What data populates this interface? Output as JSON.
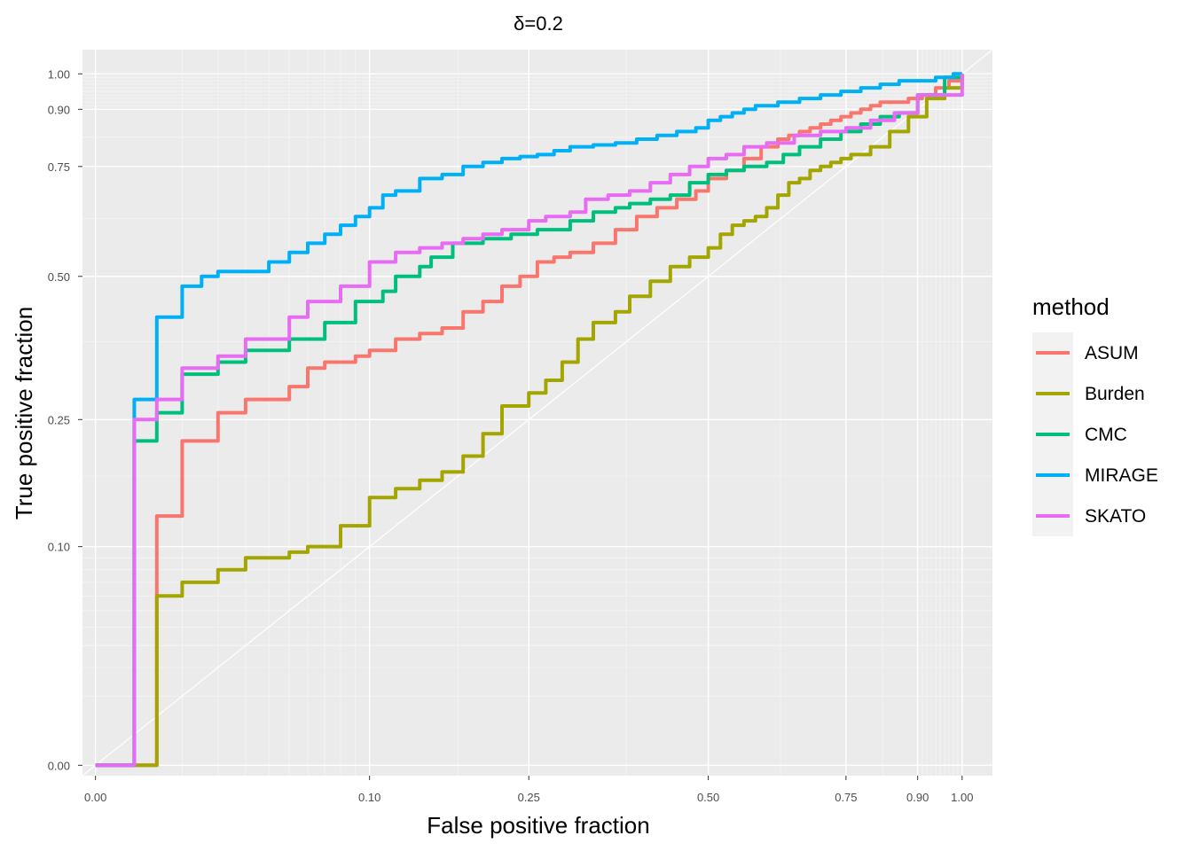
{
  "chart_data": {
    "type": "line",
    "title": "δ=0.2",
    "xlabel": "False positive fraction",
    "ylabel": "True positive fraction",
    "x_ticks": [
      0.0,
      0.1,
      0.25,
      0.5,
      0.75,
      0.9,
      1.0
    ],
    "x_tick_labels": [
      "0.00",
      "0.10",
      "0.25",
      "0.50",
      "0.75",
      "0.90",
      "1.00"
    ],
    "y_ticks": [
      0.0,
      0.1,
      0.25,
      0.5,
      0.75,
      0.9,
      1.0
    ],
    "y_tick_labels": [
      "0.00",
      "0.10",
      "0.25",
      "0.50",
      "0.75",
      "0.90",
      "1.00"
    ],
    "xlim": [
      -0.05,
      1.05
    ],
    "ylim": [
      -0.05,
      1.05
    ],
    "grid": true,
    "reference_line": "diagonal",
    "legend": {
      "title": "method",
      "position": "right"
    },
    "series": [
      {
        "name": "ASUM",
        "color": "#F8766D",
        "x": [
          0,
          0.005,
          0.01,
          0.02,
          0.03,
          0.05,
          0.06,
          0.07,
          0.09,
          0.1,
          0.12,
          0.14,
          0.16,
          0.18,
          0.2,
          0.22,
          0.24,
          0.26,
          0.28,
          0.3,
          0.33,
          0.36,
          0.39,
          0.42,
          0.45,
          0.48,
          0.5,
          0.53,
          0.56,
          0.59,
          0.62,
          0.64,
          0.66,
          0.68,
          0.7,
          0.72,
          0.74,
          0.76,
          0.78,
          0.8,
          0.82,
          0.85,
          0.88,
          0.91,
          0.94,
          0.97,
          1.0
        ],
        "y": [
          0,
          0.13,
          0.22,
          0.26,
          0.28,
          0.3,
          0.33,
          0.34,
          0.35,
          0.36,
          0.38,
          0.39,
          0.4,
          0.43,
          0.45,
          0.48,
          0.5,
          0.53,
          0.54,
          0.55,
          0.57,
          0.6,
          0.63,
          0.65,
          0.67,
          0.69,
          0.72,
          0.74,
          0.77,
          0.8,
          0.82,
          0.83,
          0.84,
          0.85,
          0.86,
          0.87,
          0.88,
          0.89,
          0.9,
          0.91,
          0.92,
          0.92,
          0.93,
          0.94,
          0.96,
          0.98,
          1.0
        ]
      },
      {
        "name": "Burden",
        "color": "#A3A500",
        "x": [
          0,
          0.005,
          0.01,
          0.02,
          0.03,
          0.05,
          0.06,
          0.08,
          0.1,
          0.12,
          0.14,
          0.16,
          0.18,
          0.2,
          0.22,
          0.25,
          0.27,
          0.29,
          0.31,
          0.33,
          0.36,
          0.38,
          0.41,
          0.44,
          0.47,
          0.5,
          0.52,
          0.54,
          0.56,
          0.58,
          0.6,
          0.62,
          0.64,
          0.66,
          0.68,
          0.7,
          0.72,
          0.74,
          0.76,
          0.8,
          0.84,
          0.88,
          0.92,
          0.96,
          1.0
        ],
        "y": [
          0,
          0.06,
          0.07,
          0.08,
          0.09,
          0.095,
          0.1,
          0.12,
          0.15,
          0.16,
          0.17,
          0.18,
          0.2,
          0.23,
          0.27,
          0.29,
          0.31,
          0.34,
          0.38,
          0.41,
          0.43,
          0.46,
          0.49,
          0.52,
          0.54,
          0.56,
          0.59,
          0.61,
          0.62,
          0.63,
          0.65,
          0.68,
          0.71,
          0.72,
          0.74,
          0.75,
          0.76,
          0.77,
          0.78,
          0.8,
          0.84,
          0.88,
          0.93,
          0.96,
          1.0
        ]
      },
      {
        "name": "CMC",
        "color": "#00BF7D",
        "x": [
          0,
          0.002,
          0.005,
          0.01,
          0.02,
          0.03,
          0.05,
          0.07,
          0.09,
          0.11,
          0.12,
          0.14,
          0.15,
          0.17,
          0.2,
          0.23,
          0.26,
          0.3,
          0.33,
          0.36,
          0.38,
          0.41,
          0.44,
          0.47,
          0.5,
          0.53,
          0.56,
          0.6,
          0.63,
          0.66,
          0.7,
          0.74,
          0.78,
          0.82,
          0.86,
          0.9,
          0.93,
          0.96,
          0.98,
          1.0
        ],
        "y": [
          0,
          0.22,
          0.26,
          0.32,
          0.34,
          0.36,
          0.38,
          0.41,
          0.45,
          0.47,
          0.5,
          0.52,
          0.54,
          0.57,
          0.58,
          0.59,
          0.6,
          0.62,
          0.64,
          0.65,
          0.66,
          0.67,
          0.68,
          0.71,
          0.73,
          0.74,
          0.75,
          0.76,
          0.78,
          0.8,
          0.82,
          0.84,
          0.86,
          0.88,
          0.89,
          0.94,
          0.94,
          0.99,
          0.99,
          0.99
        ]
      },
      {
        "name": "MIRAGE",
        "color": "#00B0F6",
        "x": [
          0,
          0.002,
          0.005,
          0.01,
          0.015,
          0.02,
          0.04,
          0.05,
          0.06,
          0.07,
          0.08,
          0.09,
          0.1,
          0.11,
          0.12,
          0.14,
          0.16,
          0.18,
          0.2,
          0.22,
          0.24,
          0.26,
          0.28,
          0.3,
          0.33,
          0.36,
          0.39,
          0.42,
          0.45,
          0.48,
          0.5,
          0.52,
          0.54,
          0.56,
          0.58,
          0.62,
          0.66,
          0.7,
          0.74,
          0.78,
          0.82,
          0.86,
          0.9,
          0.94,
          0.98,
          1.0
        ],
        "y": [
          0,
          0.28,
          0.42,
          0.48,
          0.5,
          0.51,
          0.53,
          0.55,
          0.57,
          0.59,
          0.61,
          0.63,
          0.65,
          0.68,
          0.69,
          0.72,
          0.73,
          0.75,
          0.76,
          0.77,
          0.775,
          0.78,
          0.79,
          0.8,
          0.805,
          0.81,
          0.82,
          0.83,
          0.84,
          0.85,
          0.87,
          0.88,
          0.89,
          0.9,
          0.91,
          0.92,
          0.93,
          0.94,
          0.95,
          0.96,
          0.97,
          0.98,
          0.98,
          0.99,
          1.0,
          1.0
        ]
      },
      {
        "name": "SKATO",
        "color": "#E76BF3",
        "x": [
          0,
          0.002,
          0.005,
          0.01,
          0.02,
          0.03,
          0.05,
          0.06,
          0.08,
          0.1,
          0.12,
          0.14,
          0.16,
          0.18,
          0.2,
          0.22,
          0.25,
          0.27,
          0.3,
          0.32,
          0.35,
          0.38,
          0.41,
          0.44,
          0.47,
          0.5,
          0.53,
          0.56,
          0.6,
          0.65,
          0.7,
          0.75,
          0.8,
          0.85,
          0.9,
          0.95,
          1.0
        ],
        "y": [
          0,
          0.25,
          0.28,
          0.33,
          0.35,
          0.38,
          0.42,
          0.45,
          0.48,
          0.53,
          0.55,
          0.56,
          0.57,
          0.58,
          0.59,
          0.6,
          0.62,
          0.63,
          0.64,
          0.67,
          0.68,
          0.69,
          0.71,
          0.73,
          0.75,
          0.77,
          0.78,
          0.8,
          0.81,
          0.83,
          0.84,
          0.85,
          0.87,
          0.89,
          0.94,
          0.94,
          1.0
        ]
      }
    ]
  }
}
